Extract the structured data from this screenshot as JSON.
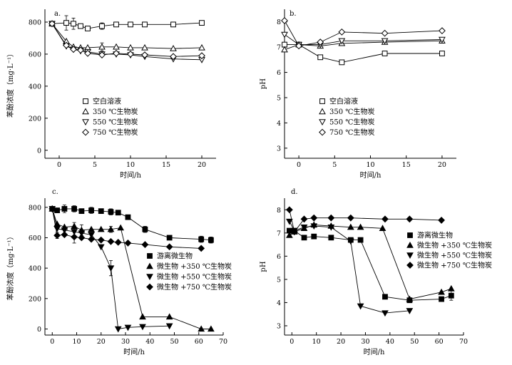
{
  "chart_data": [
    {
      "panel_label": "a.",
      "type": "line",
      "xlabel": "时间/h",
      "ylabel": "苯酚浓度（mg·L⁻¹）",
      "xlim": [
        -2,
        22
      ],
      "ylim": [
        -50,
        880
      ],
      "xticks": [
        0,
        5,
        10,
        15,
        20
      ],
      "yticks": [
        0,
        200,
        400,
        600,
        800
      ],
      "legend_position": "lower-left",
      "series": [
        {
          "name": "空白溶液",
          "marker": "square-open",
          "x": [
            -1,
            1,
            2,
            3,
            4,
            6,
            8,
            10,
            12,
            16,
            20
          ],
          "y": [
            790,
            795,
            790,
            775,
            760,
            775,
            785,
            785,
            785,
            785,
            795
          ],
          "err": [
            0,
            45,
            35,
            0,
            0,
            20,
            0,
            0,
            0,
            0,
            0
          ]
        },
        {
          "name": "350 ℃生物炭",
          "marker": "triangle-up-open",
          "x": [
            -1,
            1,
            2,
            3,
            4,
            6,
            8,
            10,
            12,
            16,
            20
          ],
          "y": [
            790,
            680,
            645,
            640,
            640,
            645,
            645,
            640,
            640,
            635,
            640
          ],
          "err": [
            0,
            0,
            0,
            0,
            0,
            25,
            0,
            0,
            0,
            0,
            0
          ]
        },
        {
          "name": "550 ℃生物炭",
          "marker": "triangle-down-open",
          "x": [
            -1,
            1,
            2,
            3,
            4,
            6,
            8,
            10,
            12,
            16,
            20
          ],
          "y": [
            790,
            650,
            630,
            620,
            615,
            600,
            600,
            595,
            585,
            570,
            565
          ],
          "err": [
            0,
            0,
            0,
            0,
            0,
            0,
            0,
            0,
            0,
            0,
            0
          ]
        },
        {
          "name": "750 ℃生物炭",
          "marker": "diamond-open",
          "x": [
            -1,
            1,
            2,
            3,
            4,
            6,
            8,
            10,
            12,
            16,
            20
          ],
          "y": [
            790,
            655,
            630,
            625,
            605,
            595,
            605,
            600,
            595,
            585,
            590
          ],
          "err": [
            0,
            0,
            0,
            0,
            0,
            0,
            0,
            0,
            0,
            0,
            0
          ]
        }
      ]
    },
    {
      "panel_label": "b.",
      "type": "line",
      "xlabel": "时间/h",
      "ylabel": "pH",
      "xlim": [
        -2,
        22
      ],
      "ylim": [
        2.6,
        8.5
      ],
      "xticks": [
        0,
        5,
        10,
        15,
        20
      ],
      "yticks": [
        3,
        4,
        5,
        6,
        7,
        8
      ],
      "legend_position": "lower-left",
      "series": [
        {
          "name": "空白溶液",
          "marker": "square-open",
          "x": [
            -2,
            0,
            3,
            6,
            12,
            20
          ],
          "y": [
            7.1,
            7.1,
            6.6,
            6.4,
            6.75,
            6.75
          ]
        },
        {
          "name": "350 ℃生物炭",
          "marker": "triangle-up-open",
          "x": [
            -2,
            0,
            3,
            6,
            12,
            20
          ],
          "y": [
            6.9,
            7.1,
            7.05,
            7.15,
            7.2,
            7.25
          ]
        },
        {
          "name": "550 ℃生物炭",
          "marker": "triangle-down-open",
          "x": [
            -2,
            0,
            3,
            6,
            12,
            20
          ],
          "y": [
            7.5,
            7.1,
            7.1,
            7.25,
            7.25,
            7.3
          ]
        },
        {
          "name": "750 ℃生物炭",
          "marker": "diamond-open",
          "x": [
            -2,
            0,
            3,
            6,
            12,
            20
          ],
          "y": [
            8.05,
            7.05,
            7.2,
            7.6,
            7.55,
            7.65
          ]
        }
      ]
    },
    {
      "panel_label": "c.",
      "type": "line",
      "xlabel": "时间/h",
      "ylabel": "苯酚浓度（mg·L⁻¹）",
      "xlim": [
        -3,
        70
      ],
      "ylim": [
        -40,
        860
      ],
      "xticks": [
        0,
        10,
        20,
        30,
        40,
        50,
        60,
        70
      ],
      "yticks": [
        0,
        200,
        400,
        600,
        800
      ],
      "legend_position": "center-right",
      "series": [
        {
          "name": "游离微生物",
          "marker": "square-filled",
          "x": [
            0,
            2,
            5,
            9,
            12,
            16,
            20,
            24,
            27,
            31,
            38,
            48,
            61,
            65
          ],
          "y": [
            790,
            780,
            790,
            790,
            775,
            780,
            775,
            770,
            765,
            735,
            655,
            600,
            590,
            585
          ],
          "err": [
            0,
            0,
            25,
            20,
            0,
            20,
            0,
            20,
            0,
            0,
            20,
            0,
            20,
            20
          ]
        },
        {
          "name": "微生物 +350 ℃生物炭",
          "marker": "triangle-up-filled",
          "x": [
            0,
            2,
            5,
            9,
            12,
            16,
            20,
            24,
            28,
            37,
            48,
            61,
            65
          ],
          "y": [
            790,
            690,
            670,
            675,
            650,
            655,
            655,
            655,
            665,
            80,
            80,
            0,
            0
          ],
          "err": [
            0,
            0,
            0,
            25,
            35,
            0,
            0,
            20,
            0,
            0,
            0,
            0,
            0
          ]
        },
        {
          "name": "微生物 +550 ℃生物炭",
          "marker": "triangle-down-filled",
          "x": [
            0,
            2,
            5,
            9,
            12,
            16,
            20,
            24,
            27,
            31,
            37,
            48
          ],
          "y": [
            790,
            660,
            650,
            640,
            630,
            620,
            540,
            400,
            0,
            10,
            15,
            20
          ],
          "err": [
            0,
            0,
            0,
            0,
            0,
            0,
            0,
            50,
            0,
            0,
            0,
            0
          ]
        },
        {
          "name": "微生物 +750 ℃生物炭",
          "marker": "diamond-filled",
          "x": [
            0,
            2,
            5,
            9,
            12,
            16,
            20,
            24,
            27,
            31,
            38,
            48,
            61
          ],
          "y": [
            790,
            615,
            620,
            605,
            600,
            590,
            585,
            575,
            570,
            565,
            555,
            540,
            530
          ],
          "err": [
            0,
            20,
            0,
            40,
            0,
            0,
            0,
            0,
            0,
            0,
            0,
            0,
            0
          ]
        }
      ]
    },
    {
      "panel_label": "d.",
      "type": "line",
      "xlabel": "时间/h",
      "ylabel": "pH",
      "xlim": [
        -3,
        70
      ],
      "ylim": [
        2.6,
        8.5
      ],
      "xticks": [
        0,
        10,
        20,
        30,
        40,
        50,
        60,
        70
      ],
      "yticks": [
        3,
        4,
        5,
        6,
        7,
        8
      ],
      "legend_position": "center-right",
      "series": [
        {
          "name": "游离微生物",
          "marker": "square-filled",
          "x": [
            -1,
            1,
            5,
            9,
            16,
            24,
            28,
            38,
            48,
            61,
            65
          ],
          "y": [
            7.1,
            7.1,
            6.8,
            6.85,
            6.8,
            6.7,
            6.7,
            4.25,
            4.1,
            4.15,
            4.3
          ],
          "err": [
            0,
            0,
            0,
            0,
            0,
            0,
            0,
            0,
            0,
            0,
            0.2
          ]
        },
        {
          "name": "微生物 +350 ℃生物炭",
          "marker": "triangle-up-filled",
          "x": [
            -1,
            1,
            5,
            9,
            16,
            24,
            28,
            37,
            48,
            61,
            65
          ],
          "y": [
            6.9,
            7.05,
            7.2,
            7.35,
            7.3,
            7.25,
            7.25,
            7.2,
            4.15,
            4.45,
            4.6
          ]
        },
        {
          "name": "微生物 +550 ℃生物炭",
          "marker": "triangle-down-filled",
          "x": [
            -1,
            1,
            5,
            9,
            16,
            24,
            28,
            38,
            48
          ],
          "y": [
            7.5,
            7.1,
            7.25,
            7.3,
            7.25,
            6.65,
            3.85,
            3.55,
            3.65
          ]
        },
        {
          "name": "微生物 +750 ℃生物炭",
          "marker": "diamond-filled",
          "x": [
            -1,
            1,
            5,
            9,
            16,
            24,
            38,
            48,
            61
          ],
          "y": [
            8.0,
            7.05,
            7.6,
            7.65,
            7.65,
            7.65,
            7.6,
            7.6,
            7.55
          ]
        }
      ]
    }
  ]
}
